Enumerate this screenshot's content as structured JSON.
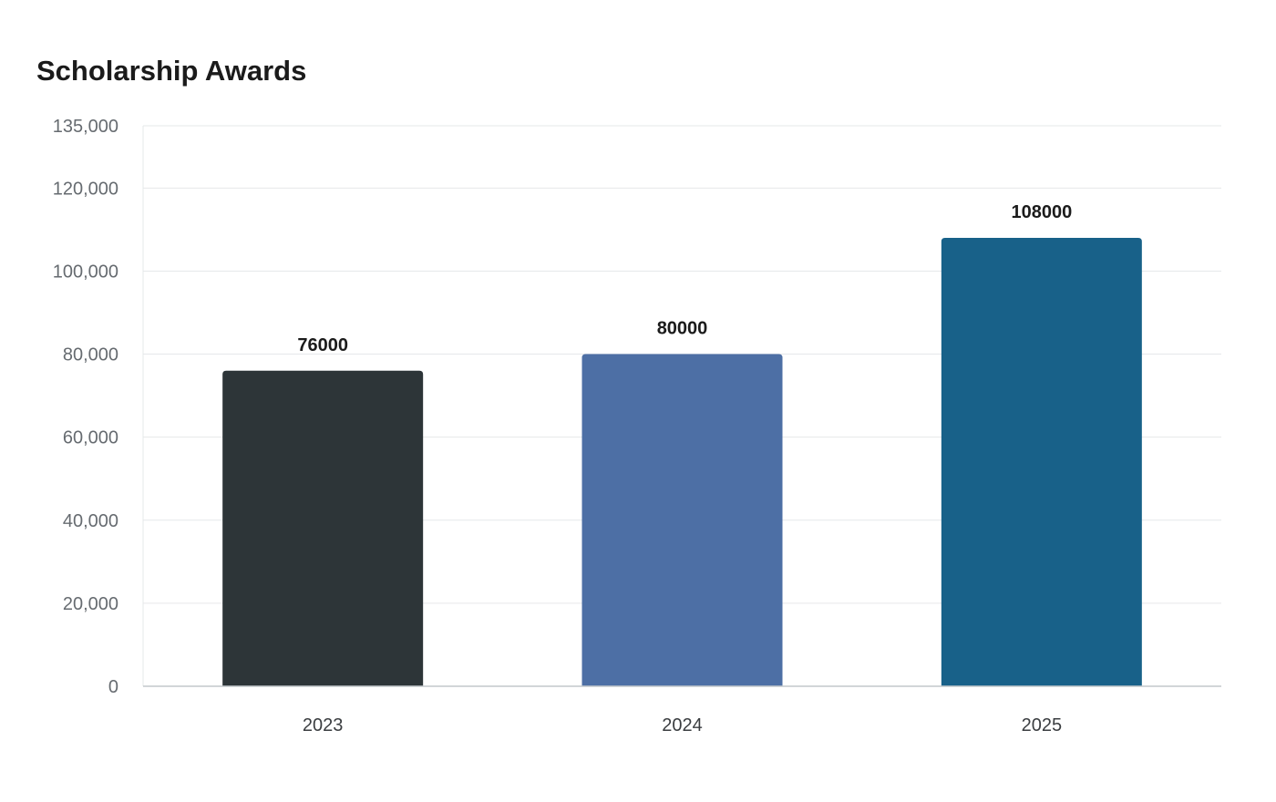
{
  "chart_data": {
    "type": "bar",
    "title": "Scholarship Awards",
    "xlabel": "",
    "ylabel": "",
    "categories": [
      "2023",
      "2024",
      "2025"
    ],
    "values": [
      76000,
      80000,
      108000
    ],
    "data_labels": [
      "76000",
      "80000",
      "108000"
    ],
    "bar_colors": [
      "#2d3538",
      "#4d6fa5",
      "#186189"
    ],
    "ylim": [
      0,
      135000
    ],
    "y_ticks": [
      0,
      20000,
      40000,
      60000,
      80000,
      100000,
      120000,
      135000
    ],
    "y_tick_labels": [
      "0",
      "20,000",
      "40,000",
      "60,000",
      "80,000",
      "100,000",
      "120,000",
      "135,000"
    ],
    "grid": true,
    "legend": "none"
  }
}
